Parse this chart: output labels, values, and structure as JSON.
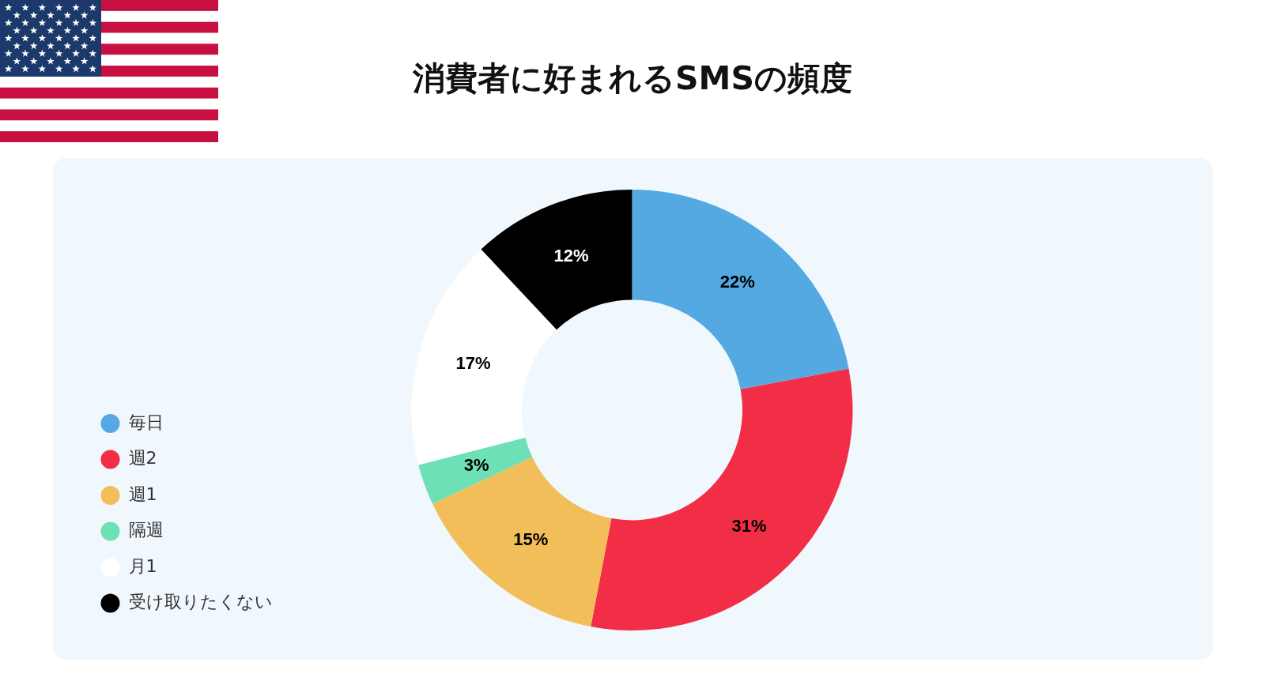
{
  "chart_data": {
    "type": "donut",
    "title": "消費者に好まれるSMSの頻度",
    "categories": [
      "毎日",
      "週2",
      "週1",
      "隔週",
      "月1",
      "受け取りたくない"
    ],
    "values": [
      22,
      31,
      15,
      3,
      17,
      12
    ],
    "colors": [
      "#54a9e3",
      "#f22e46",
      "#f2be5a",
      "#6ee0b5",
      "#ffffff",
      "#000000"
    ],
    "value_labels": [
      "22%",
      "31%",
      "15%",
      "3%",
      "17%",
      "12%"
    ],
    "legend": "bottom left"
  }
}
